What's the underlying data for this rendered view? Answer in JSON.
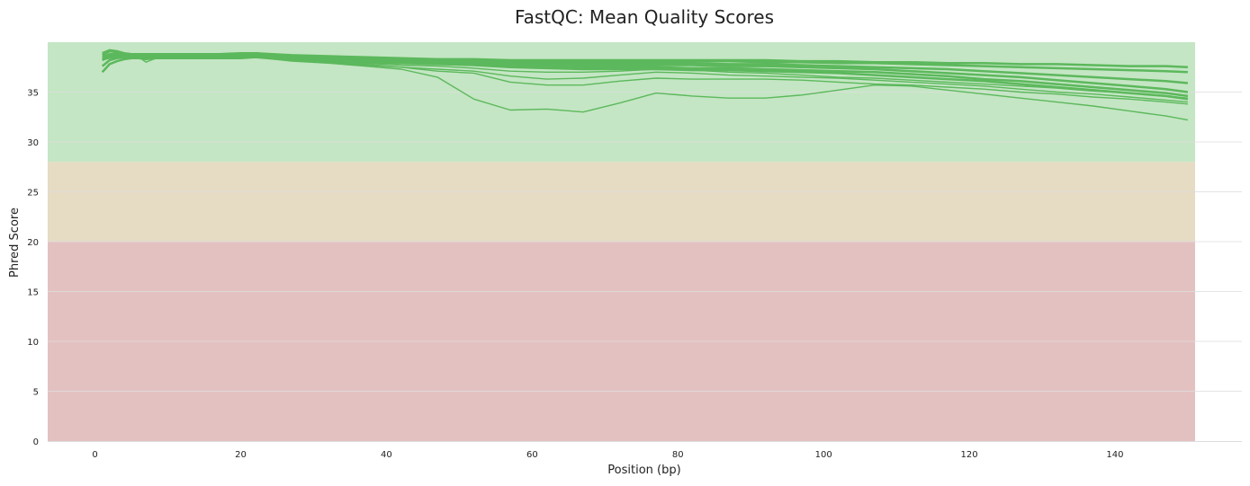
{
  "chart_data": {
    "type": "line",
    "title": "FastQC: Mean Quality Scores",
    "xlabel": "Position (bp)",
    "ylabel": "Phred Score",
    "xlim": [
      -6.5,
      151
    ],
    "ylim": [
      0,
      40
    ],
    "x_ticks": [
      0,
      20,
      40,
      60,
      80,
      100,
      120,
      140
    ],
    "y_ticks": [
      0,
      5,
      10,
      15,
      20,
      25,
      30,
      35
    ],
    "grid": "horizontal",
    "line_color": "#5cb85c",
    "bands": [
      {
        "from": 0,
        "to": 20,
        "color": "#e4c1c1"
      },
      {
        "from": 20,
        "to": 28,
        "color": "#e6dbc3"
      },
      {
        "from": 28,
        "to": 40,
        "color": "#c4e6c4"
      }
    ],
    "x": [
      1,
      2,
      3,
      4,
      5,
      6,
      7,
      8,
      9,
      10,
      12,
      15,
      17,
      20,
      22,
      27,
      32,
      37,
      42,
      47,
      52,
      57,
      62,
      67,
      72,
      77,
      82,
      87,
      92,
      97,
      102,
      107,
      112,
      117,
      122,
      127,
      132,
      137,
      142,
      147,
      150
    ],
    "series": [
      {
        "values": [
          38.9,
          39.2,
          39.1,
          38.9,
          38.8,
          38.8,
          38.8,
          38.8,
          38.8,
          38.8,
          38.8,
          38.8,
          38.8,
          38.9,
          38.9,
          38.7,
          38.6,
          38.5,
          38.4,
          38.3,
          38.3,
          38.2,
          38.2,
          38.2,
          38.2,
          38.2,
          38.2,
          38.2,
          38.2,
          38.1,
          38.1,
          38.0,
          38.0,
          37.9,
          37.9,
          37.8,
          37.8,
          37.7,
          37.6,
          37.6,
          37.5
        ]
      },
      {
        "values": [
          38.7,
          39.1,
          39.0,
          38.8,
          38.7,
          38.7,
          38.7,
          38.7,
          38.7,
          38.7,
          38.7,
          38.7,
          38.7,
          38.8,
          38.9,
          38.6,
          38.5,
          38.4,
          38.3,
          38.2,
          38.2,
          38.1,
          38.1,
          38.1,
          38.1,
          38.1,
          38.1,
          38.1,
          38.0,
          38.0,
          37.9,
          37.9,
          37.8,
          37.7,
          37.6,
          37.5,
          37.4,
          37.3,
          37.2,
          37.1,
          37.0
        ]
      },
      {
        "values": [
          38.5,
          38.8,
          38.8,
          38.7,
          38.6,
          38.6,
          38.6,
          38.6,
          38.6,
          38.7,
          38.7,
          38.7,
          38.7,
          38.7,
          38.8,
          38.5,
          38.4,
          38.3,
          38.2,
          38.1,
          38.0,
          38.0,
          37.9,
          37.9,
          37.9,
          37.9,
          37.9,
          37.8,
          37.8,
          37.7,
          37.6,
          37.5,
          37.4,
          37.3,
          37.1,
          36.9,
          36.7,
          36.5,
          36.3,
          36.1,
          35.9
        ]
      },
      {
        "values": [
          38.2,
          38.6,
          38.7,
          38.6,
          38.6,
          38.6,
          38.6,
          38.6,
          38.6,
          38.6,
          38.6,
          38.6,
          38.6,
          38.6,
          38.7,
          38.4,
          38.3,
          38.2,
          38.1,
          38.0,
          37.9,
          37.8,
          37.8,
          37.7,
          37.7,
          37.7,
          37.7,
          37.6,
          37.6,
          37.5,
          37.4,
          37.3,
          37.1,
          36.9,
          36.7,
          36.5,
          36.2,
          35.9,
          35.6,
          35.3,
          35.0
        ]
      },
      {
        "values": [
          37.6,
          38.2,
          38.4,
          38.5,
          38.5,
          38.5,
          38.5,
          38.5,
          38.5,
          38.5,
          38.5,
          38.5,
          38.5,
          38.5,
          38.6,
          38.3,
          38.2,
          38.1,
          38.0,
          37.9,
          37.8,
          37.7,
          37.6,
          37.5,
          37.5,
          37.5,
          37.4,
          37.4,
          37.3,
          37.2,
          37.1,
          37.0,
          36.8,
          36.6,
          36.3,
          36.1,
          35.8,
          35.5,
          35.2,
          34.9,
          34.6
        ]
      },
      {
        "values": [
          37.0,
          37.8,
          38.1,
          38.3,
          38.4,
          38.4,
          38.3,
          38.4,
          38.4,
          38.4,
          38.4,
          38.4,
          38.4,
          38.4,
          38.5,
          38.2,
          38.1,
          38.0,
          37.9,
          37.8,
          37.7,
          37.5,
          37.4,
          37.3,
          37.3,
          37.3,
          37.2,
          37.2,
          37.1,
          37.0,
          36.9,
          36.7,
          36.5,
          36.3,
          36.1,
          35.8,
          35.5,
          35.2,
          34.9,
          34.6,
          34.3
        ]
      },
      {
        "values": [
          38.4,
          38.6,
          38.6,
          38.6,
          38.6,
          38.5,
          38.0,
          38.3,
          38.5,
          38.6,
          38.6,
          38.6,
          38.6,
          38.6,
          38.7,
          38.3,
          38.1,
          37.9,
          37.7,
          37.6,
          37.4,
          37.1,
          37.0,
          37.0,
          37.1,
          37.3,
          37.2,
          37.0,
          36.9,
          36.7,
          36.5,
          36.4,
          36.2,
          36.0,
          35.8,
          35.6,
          35.4,
          35.1,
          34.9,
          34.6,
          34.4
        ]
      },
      {
        "values": [
          38.3,
          38.5,
          38.6,
          38.6,
          38.6,
          38.6,
          38.6,
          38.6,
          38.6,
          38.6,
          38.6,
          38.6,
          38.6,
          38.6,
          38.6,
          38.2,
          38.0,
          37.7,
          37.5,
          37.3,
          37.1,
          36.6,
          36.3,
          36.4,
          36.7,
          37.0,
          36.9,
          36.7,
          36.6,
          36.5,
          36.4,
          36.2,
          36.0,
          35.8,
          35.6,
          35.3,
          35.0,
          34.8,
          34.5,
          34.2,
          34.0
        ]
      },
      {
        "values": [
          38.3,
          38.5,
          38.6,
          38.6,
          38.6,
          38.6,
          38.6,
          38.6,
          38.6,
          38.6,
          38.6,
          38.6,
          38.6,
          38.6,
          38.6,
          38.2,
          38.0,
          37.8,
          37.5,
          37.1,
          36.9,
          36.0,
          35.7,
          35.7,
          36.1,
          36.4,
          36.3,
          36.3,
          36.3,
          36.2,
          36.0,
          35.8,
          35.7,
          35.5,
          35.3,
          35.0,
          34.8,
          34.5,
          34.3,
          34.0,
          33.8
        ]
      },
      {
        "values": [
          38.2,
          38.4,
          38.5,
          38.5,
          38.5,
          38.5,
          38.5,
          38.5,
          38.5,
          38.5,
          38.5,
          38.5,
          38.5,
          38.5,
          38.5,
          38.1,
          37.9,
          37.6,
          37.3,
          36.5,
          34.3,
          33.2,
          33.3,
          33.0,
          33.9,
          34.9,
          34.6,
          34.4,
          34.4,
          34.7,
          35.2,
          35.7,
          35.6,
          35.2,
          34.8,
          34.4,
          34.0,
          33.6,
          33.1,
          32.6,
          32.2
        ]
      }
    ]
  }
}
